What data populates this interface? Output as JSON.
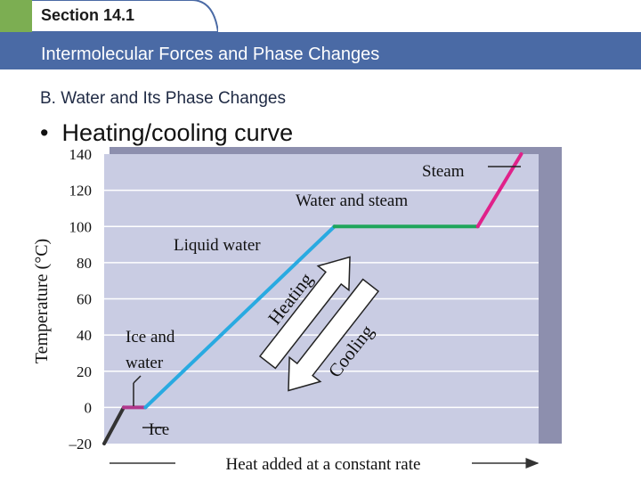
{
  "header": {
    "section": "Section 14.1",
    "title": "Intermolecular Forces and Phase Changes",
    "subheading": "B. Water and Its Phase Changes",
    "bullet": "Heating/cooling curve"
  },
  "colors": {
    "accent_green": "#7cae52",
    "title_band": "#4a6aa5",
    "plot_bg": "#c9cce3",
    "ice_line": "#333333",
    "melt_line": "#b2378c",
    "liquid_line": "#29aae1",
    "boil_line": "#1fa55b",
    "steam_line": "#e0218a"
  },
  "chart_data": {
    "type": "line",
    "x_unit": "heat added (arbitrary, constant rate)",
    "ylabel": "Temperature (°C)",
    "xlabel": "Heat added at a constant rate",
    "yticks": [
      "140",
      "120",
      "100",
      "80",
      "60",
      "40",
      "20",
      "0",
      "–20"
    ],
    "ylim": [
      -20,
      140
    ],
    "xlim": [
      0,
      10
    ],
    "grid": true,
    "segments": [
      {
        "phase": "ice",
        "x": [
          0.0,
          0.45
        ],
        "y": [
          -20,
          0
        ]
      },
      {
        "phase": "melting",
        "x": [
          0.45,
          0.95
        ],
        "y": [
          0,
          0
        ]
      },
      {
        "phase": "liquid",
        "x": [
          0.95,
          5.3
        ],
        "y": [
          0,
          100
        ]
      },
      {
        "phase": "boiling",
        "x": [
          5.3,
          8.6
        ],
        "y": [
          100,
          100
        ]
      },
      {
        "phase": "steam",
        "x": [
          8.6,
          9.6
        ],
        "y": [
          100,
          140
        ]
      }
    ],
    "annotations": {
      "steam": "Steam",
      "water_and_steam": "Water and steam",
      "liquid_water": "Liquid water",
      "ice_and_water_1": "Ice and",
      "ice_and_water_2": "water",
      "ice": "Ice",
      "heating": "Heating",
      "cooling": "Cooling"
    }
  }
}
